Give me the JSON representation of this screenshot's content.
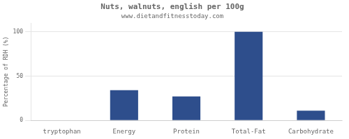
{
  "chart_data": {
    "type": "bar",
    "title": "Nuts, walnuts, english per 100g",
    "subtitle": "www.dietandfitnesstoday.com",
    "categories": [
      "tryptophan",
      "Energy",
      "Protein",
      "Total-Fat",
      "Carbohydrate"
    ],
    "values": [
      0,
      34,
      27,
      100,
      11
    ],
    "color": "#2e4e8c",
    "ylabel": "Percentage of RDH (%)",
    "ylim": [
      0,
      110
    ],
    "yticks": [
      0,
      50,
      100
    ],
    "grid": true
  }
}
